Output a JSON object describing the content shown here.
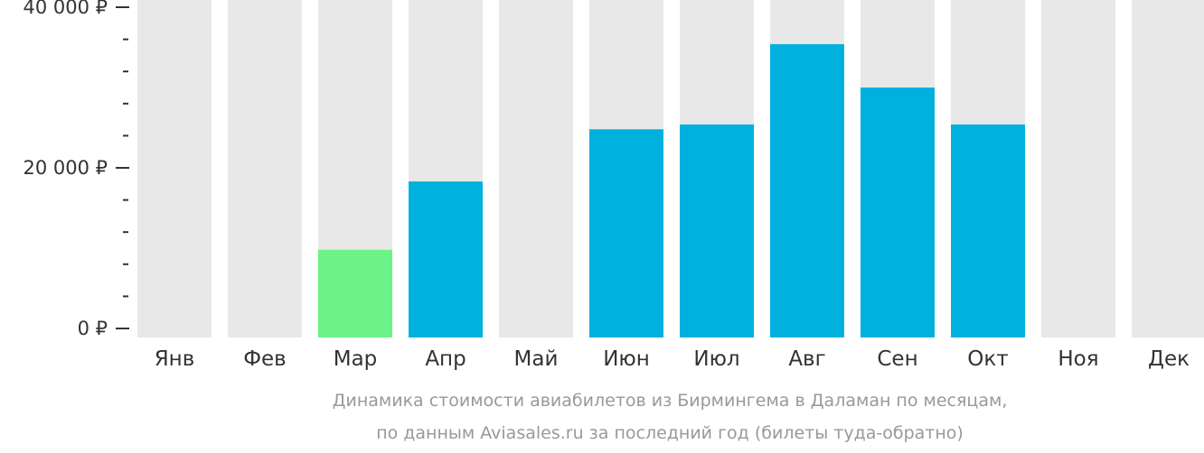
{
  "chart_data": {
    "type": "bar",
    "categories": [
      "Янв",
      "Фев",
      "Мар",
      "Апр",
      "Май",
      "Июн",
      "Июл",
      "Авг",
      "Сен",
      "Окт",
      "Ноя",
      "Дек"
    ],
    "values": [
      null,
      null,
      9800,
      18300,
      null,
      24800,
      25400,
      35400,
      30000,
      25400,
      null,
      null
    ],
    "highlight_index": 2,
    "ylim": [
      0,
      40000
    ],
    "y_ticks": [
      {
        "value": 0,
        "label": "0 ₽"
      },
      {
        "value": 20000,
        "label": "20 000 ₽"
      },
      {
        "value": 40000,
        "label": "40 000 ₽"
      }
    ],
    "minor_tick_step": 4000,
    "colors": {
      "bar": "#00b1dd",
      "highlight": "#6cf287",
      "background_column": "#e8e8e8",
      "axis": "#333333"
    },
    "caption": [
      "Динамика стоимости авиабилетов из Бирмингема в Даламан по месяцам,",
      "по данным Aviasales.ru за последний год (билеты туда-обратно)"
    ]
  }
}
